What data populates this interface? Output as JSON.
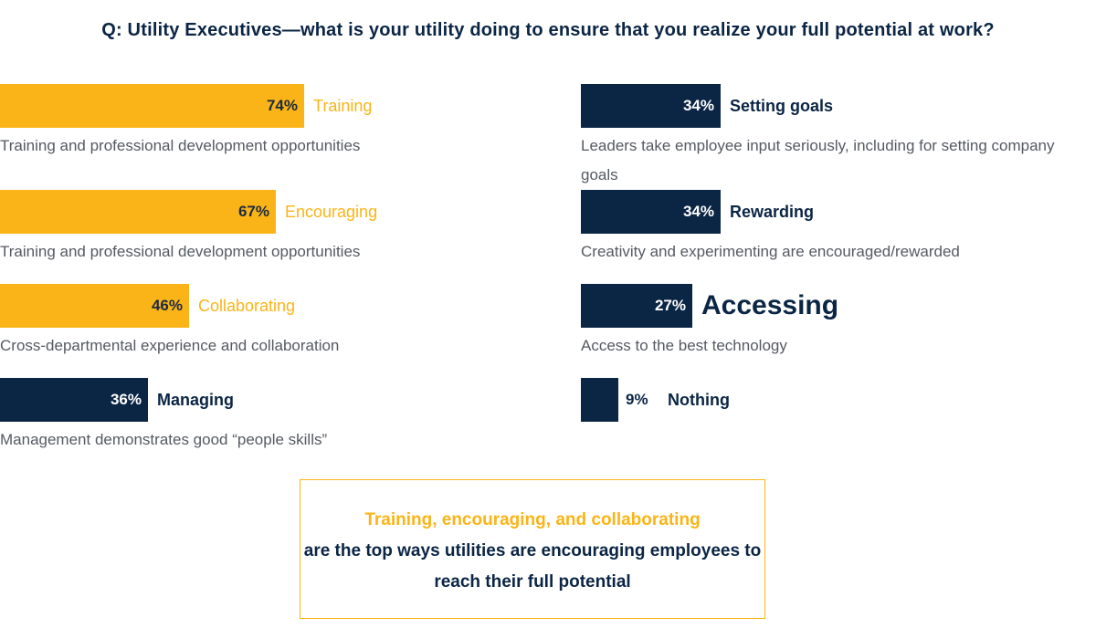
{
  "title": "Q: Utility Executives—what is your utility doing to ensure that you realize your full potential at work?",
  "chart_data": {
    "type": "bar",
    "orientation": "horizontal",
    "title": "Q: Utility Executives—what is your utility doing to ensure that you realize your full potential at work?",
    "unit": "%",
    "xlim": [
      0,
      100
    ],
    "items": [
      {
        "label": "Training",
        "value": 74,
        "value_label": "74%",
        "description": "Training and professional development opportunities",
        "color": "#fbb417"
      },
      {
        "label": "Encouraging",
        "value": 67,
        "value_label": "67%",
        "description": "Training and professional development opportunities",
        "color": "#fbb417"
      },
      {
        "label": "Collaborating",
        "value": 46,
        "value_label": "46%",
        "description": "Cross-departmental experience and collaboration",
        "color": "#fbb417"
      },
      {
        "label": "Managing",
        "value": 36,
        "value_label": "36%",
        "description": "Management demonstrates good “people skills”",
        "color": "#0b2545"
      },
      {
        "label": "Setting goals",
        "value": 34,
        "value_label": "34%",
        "description": "Leaders take employee input seriously, including for setting company goals",
        "color": "#0b2545"
      },
      {
        "label": "Rewarding",
        "value": 34,
        "value_label": "34%",
        "description": "Creativity and experimenting are encouraged/rewarded",
        "color": "#0b2545"
      },
      {
        "label": "Accessing",
        "value": 27,
        "value_label": "27%",
        "description": "Access to the best technology",
        "color": "#0b2545"
      },
      {
        "label": "Nothing",
        "value": 9,
        "value_label": "9%",
        "description": "",
        "color": "#0b2545"
      }
    ]
  },
  "note": {
    "highlight": "Training, encouraging, and collaborating",
    "text": "are the top ways utilities are encouraging employees to reach their full potential"
  },
  "colors": {
    "gold": "#fbb417",
    "navy": "#0b2545"
  }
}
